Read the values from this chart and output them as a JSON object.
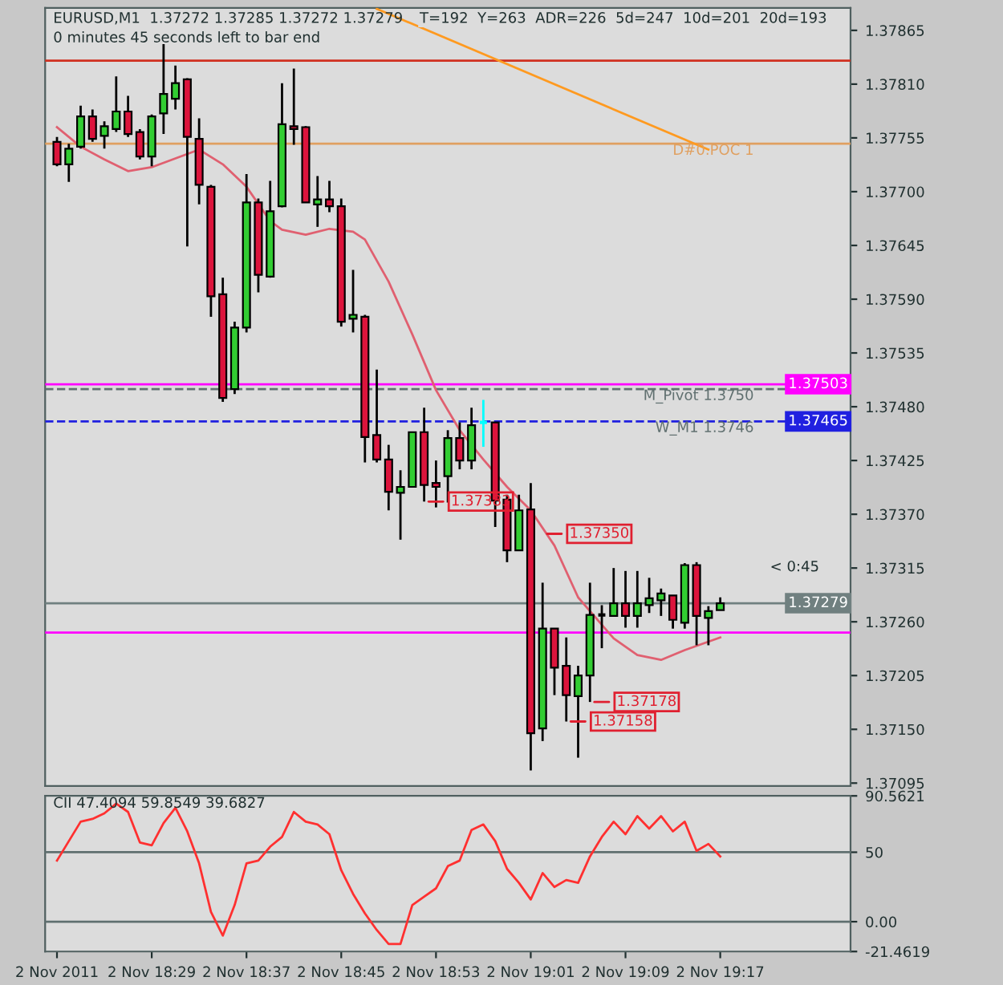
{
  "chart_data": [
    {
      "type": "candlestick",
      "title": "EURUSD,M1  1.37272 1.37285 1.37272 1.37279",
      "subtitle": "0 minutes 45 seconds left to bar end",
      "x": [
        "2011-11-02T18:21",
        "2011-11-02T18:22",
        "2011-11-02T18:23",
        "2011-11-02T18:24",
        "2011-11-02T18:25",
        "2011-11-02T18:26",
        "2011-11-02T18:27",
        "2011-11-02T18:28",
        "2011-11-02T18:29",
        "2011-11-02T18:30",
        "2011-11-02T18:31",
        "2011-11-02T18:32",
        "2011-11-02T18:33",
        "2011-11-02T18:34",
        "2011-11-02T18:35",
        "2011-11-02T18:36",
        "2011-11-02T18:37",
        "2011-11-02T18:38",
        "2011-11-02T18:39",
        "2011-11-02T18:40",
        "2011-11-02T18:41",
        "2011-11-02T18:42",
        "2011-11-02T18:43",
        "2011-11-02T18:44",
        "2011-11-02T18:45",
        "2011-11-02T18:46",
        "2011-11-02T18:47",
        "2011-11-02T18:48",
        "2011-11-02T18:49",
        "2011-11-02T18:50",
        "2011-11-02T18:51",
        "2011-11-02T18:52",
        "2011-11-02T18:53",
        "2011-11-02T18:54",
        "2011-11-02T18:55",
        "2011-11-02T18:56",
        "2011-11-02T18:57",
        "2011-11-02T18:58",
        "2011-11-02T18:59",
        "2011-11-02T19:00",
        "2011-11-02T19:01",
        "2011-11-02T19:02",
        "2011-11-02T19:03",
        "2011-11-02T19:04",
        "2011-11-02T19:05",
        "2011-11-02T19:06",
        "2011-11-02T19:07",
        "2011-11-02T19:08",
        "2011-11-02T19:09",
        "2011-11-02T19:10",
        "2011-11-02T19:11",
        "2011-11-02T19:12",
        "2011-11-02T19:13",
        "2011-11-02T19:14",
        "2011-11-02T19:15",
        "2011-11-02T19:16",
        "2011-11-02T19:17"
      ],
      "ohlc": [
        [
          1.37751,
          1.37756,
          1.37726,
          1.37728
        ],
        [
          1.37728,
          1.37749,
          1.3771,
          1.37744
        ],
        [
          1.37746,
          1.37788,
          1.37744,
          1.37777
        ],
        [
          1.37777,
          1.37784,
          1.37751,
          1.37754
        ],
        [
          1.37757,
          1.37772,
          1.37744,
          1.37767
        ],
        [
          1.37764,
          1.37818,
          1.37761,
          1.37782
        ],
        [
          1.37782,
          1.37798,
          1.37756,
          1.37759
        ],
        [
          1.37761,
          1.37764,
          1.37733,
          1.37736
        ],
        [
          1.37736,
          1.37779,
          1.37726,
          1.37777
        ],
        [
          1.3778,
          1.37851,
          1.37759,
          1.378
        ],
        [
          1.37795,
          1.37829,
          1.37784,
          1.37811
        ],
        [
          1.37815,
          1.37816,
          1.37644,
          1.37756
        ],
        [
          1.37754,
          1.37775,
          1.37687,
          1.37707
        ],
        [
          1.37705,
          1.37707,
          1.37572,
          1.37593
        ],
        [
          1.37595,
          1.37612,
          1.37485,
          1.37489
        ],
        [
          1.37498,
          1.37567,
          1.37493,
          1.37561
        ],
        [
          1.37561,
          1.37718,
          1.37556,
          1.37689
        ],
        [
          1.37689,
          1.37693,
          1.37597,
          1.37615
        ],
        [
          1.37613,
          1.37711,
          1.37612,
          1.3768
        ],
        [
          1.37685,
          1.37811,
          1.37684,
          1.37769
        ],
        [
          1.37767,
          1.37826,
          1.37748,
          1.37764
        ],
        [
          1.37766,
          1.37767,
          1.37689,
          1.37689
        ],
        [
          1.37687,
          1.37716,
          1.37664,
          1.37692
        ],
        [
          1.37692,
          1.37711,
          1.37679,
          1.37685
        ],
        [
          1.37685,
          1.37693,
          1.37562,
          1.37567
        ],
        [
          1.3757,
          1.3762,
          1.37556,
          1.37574
        ],
        [
          1.37572,
          1.37574,
          1.37423,
          1.37449
        ],
        [
          1.37451,
          1.37518,
          1.37423,
          1.37426
        ],
        [
          1.37426,
          1.37441,
          1.37374,
          1.37393
        ],
        [
          1.37392,
          1.37415,
          1.37344,
          1.37398
        ],
        [
          1.37398,
          1.37454,
          1.37398,
          1.37454
        ],
        [
          1.37454,
          1.37479,
          1.37383,
          1.374
        ],
        [
          1.37402,
          1.37425,
          1.37377,
          1.37398
        ],
        [
          1.37409,
          1.37456,
          1.37382,
          1.37448
        ],
        [
          1.37448,
          1.37464,
          1.37416,
          1.37425
        ],
        [
          1.37425,
          1.37479,
          1.37416,
          1.37461
        ],
        [
          1.37464,
          1.37487,
          1.37439,
          1.37464
        ],
        [
          1.37464,
          1.37464,
          1.37357,
          1.37384
        ],
        [
          1.37385,
          1.3739,
          1.37321,
          1.37333
        ],
        [
          1.37333,
          1.3739,
          1.37333,
          1.37374
        ],
        [
          1.37375,
          1.37402,
          1.37108,
          1.37146
        ],
        [
          1.37151,
          1.373,
          1.37138,
          1.37253
        ],
        [
          1.37253,
          1.37253,
          1.37185,
          1.37213
        ],
        [
          1.37215,
          1.37244,
          1.37158,
          1.37185
        ],
        [
          1.37184,
          1.37215,
          1.37121,
          1.37205
        ],
        [
          1.37205,
          1.373,
          1.37178,
          1.37267
        ],
        [
          1.37267,
          1.37277,
          1.37233,
          1.37267
        ],
        [
          1.37266,
          1.37315,
          1.37266,
          1.37279
        ],
        [
          1.37279,
          1.37312,
          1.37254,
          1.37266
        ],
        [
          1.37266,
          1.37312,
          1.37254,
          1.37279
        ],
        [
          1.37277,
          1.37305,
          1.37269,
          1.37284
        ],
        [
          1.37282,
          1.37294,
          1.37266,
          1.37289
        ],
        [
          1.37287,
          1.37287,
          1.37253,
          1.37262
        ],
        [
          1.37259,
          1.3732,
          1.37253,
          1.37318
        ],
        [
          1.37318,
          1.37321,
          1.37236,
          1.37266
        ],
        [
          1.37264,
          1.37276,
          1.37236,
          1.37271
        ],
        [
          1.37272,
          1.37285,
          1.37272,
          1.37279
        ]
      ],
      "colors": [
        "#dc143c",
        "#32cd32",
        "#32cd32",
        "#dc143c",
        "#32cd32",
        "#32cd32",
        "#dc143c",
        "#dc143c",
        "#32cd32",
        "#32cd32",
        "#32cd32",
        "#dc143c",
        "#dc143c",
        "#dc143c",
        "#dc143c",
        "#32cd32",
        "#32cd32",
        "#dc143c",
        "#32cd32",
        "#32cd32",
        "#dc143c",
        "#dc143c",
        "#32cd32",
        "#dc143c",
        "#dc143c",
        "#32cd32",
        "#dc143c",
        "#dc143c",
        "#dc143c",
        "#32cd32",
        "#32cd32",
        "#dc143c",
        "#dc143c",
        "#32cd32",
        "#dc143c",
        "#32cd32",
        "#00ffff",
        "#dc143c",
        "#dc143c",
        "#32cd32",
        "#dc143c",
        "#32cd32",
        "#dc143c",
        "#dc143c",
        "#32cd32",
        "#32cd32",
        "#000000",
        "#32cd32",
        "#dc143c",
        "#32cd32",
        "#32cd32",
        "#32cd32",
        "#dc143c",
        "#32cd32",
        "#dc143c",
        "#32cd32",
        "#32cd32"
      ],
      "series": [
        {
          "type": "line",
          "color": "#e06070",
          "x": [
            "2011-11-02T18:21",
            "2011-11-02T18:23",
            "2011-11-02T18:25",
            "2011-11-02T18:27",
            "2011-11-02T18:29",
            "2011-11-02T18:31",
            "2011-11-02T18:33",
            "2011-11-02T18:35",
            "2011-11-02T18:37",
            "2011-11-02T18:39",
            "2011-11-02T18:40",
            "2011-11-02T18:42",
            "2011-11-02T18:44",
            "2011-11-02T18:46",
            "2011-11-02T18:47",
            "2011-11-02T18:49",
            "2011-11-02T18:51",
            "2011-11-02T18:53",
            "2011-11-02T18:55",
            "2011-11-02T18:57",
            "2011-11-02T18:59",
            "2011-11-02T19:01",
            "2011-11-02T19:03",
            "2011-11-02T19:05",
            "2011-11-02T19:06",
            "2011-11-02T19:08",
            "2011-11-02T19:10",
            "2011-11-02T19:12",
            "2011-11-02T19:14",
            "2011-11-02T19:17"
          ],
          "values": [
            1.37766,
            1.37746,
            1.37733,
            1.37721,
            1.37725,
            1.37734,
            1.37743,
            1.37728,
            1.37705,
            1.3767,
            1.37661,
            1.37656,
            1.37662,
            1.37659,
            1.37651,
            1.37608,
            1.37554,
            1.37497,
            1.37456,
            1.37426,
            1.37398,
            1.37374,
            1.37338,
            1.37285,
            1.37271,
            1.37243,
            1.37226,
            1.37221,
            1.37231,
            1.37244
          ]
        },
        {
          "type": "line",
          "color": "#ff9a20",
          "x": [
            "2011-11-02T18:48",
            "2011-11-02T19:16"
          ],
          "values": [
            1.37887,
            1.37743
          ]
        }
      ],
      "ref_lines": [
        {
          "axis": "y",
          "value": 1.37834,
          "color": "#d03020"
        },
        {
          "axis": "y",
          "value": 1.37749,
          "label": "D#0.POC 1",
          "color": "#e0a060"
        },
        {
          "axis": "y",
          "value": 1.37503,
          "label": "1.37503",
          "color": "#ff00ff"
        },
        {
          "axis": "y",
          "value": 1.37498,
          "label": "M_Pivot 1.3750",
          "color": "#607070",
          "line_style": "dashed"
        },
        {
          "axis": "y",
          "value": 1.37465,
          "label": "1.37465",
          "color": "#2020e0",
          "line_style": "dashed"
        },
        {
          "axis": "y",
          "value": 1.37279,
          "label": "1.37279",
          "color": "#708080"
        },
        {
          "axis": "y",
          "value": 1.37249,
          "color": "#ff00ff"
        }
      ],
      "annotations": [
        "T=192  Y=263  ADR=226  5d=247  10d=201  20d=193",
        "< 0:45",
        {
          "text": "W_M1 1.3746",
          "y": 1.37465
        },
        {
          "text": "1.37383",
          "x": "2011-11-02T18:52",
          "y": 1.37383
        },
        {
          "text": "1.37350",
          "x": "2011-11-02T19:02",
          "y": 1.3735
        },
        {
          "text": "1.37178",
          "x": "2011-11-02T19:06",
          "y": 1.37178
        },
        {
          "text": "1.37158",
          "x": "2011-11-02T19:04",
          "y": 1.37158
        }
      ],
      "xlim": [
        "2011-11-02T18:20",
        "2011-11-02T19:28"
      ],
      "ylim": [
        1.37092,
        1.37888
      ],
      "yticks": [
        1.37865,
        {
          "value": 1.3781,
          "label": "1.37810"
        },
        1.37755,
        {
          "value": 1.377,
          "label": "1.37700"
        },
        1.37645,
        {
          "value": 1.3759,
          "label": "1.37590"
        },
        1.37535,
        {
          "value": 1.3748,
          "label": "1.37480"
        },
        1.37425,
        {
          "value": 1.3737,
          "label": "1.37370"
        },
        1.37315,
        {
          "value": 1.3726,
          "label": "1.37260"
        },
        1.37205,
        {
          "value": 1.3715,
          "label": "1.37150"
        },
        1.37095
      ],
      "tick_labels": "y"
    },
    {
      "type": "line",
      "title": "CII 47.4094 59.8549 39.6827",
      "x": [
        "2011-11-02T18:21",
        "2011-11-02T18:22",
        "2011-11-02T18:23",
        "2011-11-02T18:24",
        "2011-11-02T18:25",
        "2011-11-02T18:26",
        "2011-11-02T18:27",
        "2011-11-02T18:28",
        "2011-11-02T18:29",
        "2011-11-02T18:30",
        "2011-11-02T18:31",
        "2011-11-02T18:32",
        "2011-11-02T18:33",
        "2011-11-02T18:34",
        "2011-11-02T18:35",
        "2011-11-02T18:36",
        "2011-11-02T18:37",
        "2011-11-02T18:38",
        "2011-11-02T18:39",
        "2011-11-02T18:40",
        "2011-11-02T18:41",
        "2011-11-02T18:42",
        "2011-11-02T18:43",
        "2011-11-02T18:44",
        "2011-11-02T18:45",
        "2011-11-02T18:46",
        "2011-11-02T18:47",
        "2011-11-02T18:48",
        "2011-11-02T18:49",
        "2011-11-02T18:50",
        "2011-11-02T18:51",
        "2011-11-02T18:52",
        "2011-11-02T18:53",
        "2011-11-02T18:54",
        "2011-11-02T18:55",
        "2011-11-02T18:56",
        "2011-11-02T18:57",
        "2011-11-02T18:58",
        "2011-11-02T18:59",
        "2011-11-02T19:00",
        "2011-11-02T19:01",
        "2011-11-02T19:02",
        "2011-11-02T19:03",
        "2011-11-02T19:04",
        "2011-11-02T19:05",
        "2011-11-02T19:06",
        "2011-11-02T19:07",
        "2011-11-02T19:08",
        "2011-11-02T19:09",
        "2011-11-02T19:10",
        "2011-11-02T19:11",
        "2011-11-02T19:12",
        "2011-11-02T19:13",
        "2011-11-02T19:14",
        "2011-11-02T19:15",
        "2011-11-02T19:16",
        "2011-11-02T19:17"
      ],
      "series": [
        {
          "color": "#ff3030",
          "values": [
            44,
            58,
            72,
            74,
            78,
            85,
            79,
            57,
            55,
            71,
            82,
            65,
            42,
            7,
            -10,
            12,
            42,
            44,
            54,
            61,
            79,
            72,
            70,
            63,
            37,
            20,
            6,
            -6,
            -16,
            -16,
            12,
            18,
            24,
            40,
            44,
            66,
            70,
            58,
            38,
            28,
            16,
            35,
            25,
            30,
            28,
            47,
            61,
            72,
            63,
            76,
            67,
            76,
            65,
            72,
            51,
            56,
            47
          ]
        }
      ],
      "ref_lines": [
        {
          "axis": "y",
          "value": 50,
          "color": "#607070"
        },
        {
          "axis": "y",
          "value": 0,
          "color": "#607070"
        }
      ],
      "xlim": [
        "2011-11-02T18:20",
        "2011-11-02T19:28"
      ],
      "ylim": [
        -21.4619,
        90.5621
      ],
      "yticks": [
        90.5621,
        50,
        {
          "value": 0,
          "label": "0.00"
        },
        -21.4619
      ],
      "xticks": [
        {
          "value": "2011-11-02T18:21",
          "label": "2 Nov 2011"
        },
        {
          "value": "2011-11-02T18:29",
          "label": "2 Nov 18:29"
        },
        {
          "value": "2011-11-02T18:37",
          "label": "2 Nov 18:37"
        },
        {
          "value": "2011-11-02T18:45",
          "label": "2 Nov 18:45"
        },
        {
          "value": "2011-11-02T18:53",
          "label": "2 Nov 18:53"
        },
        {
          "value": "2011-11-02T19:01",
          "label": "2 Nov 19:01"
        },
        {
          "value": "2011-11-02T19:09",
          "label": "2 Nov 19:09"
        },
        {
          "value": "2011-11-02T19:17",
          "label": "2 Nov 19:17"
        }
      ]
    }
  ]
}
